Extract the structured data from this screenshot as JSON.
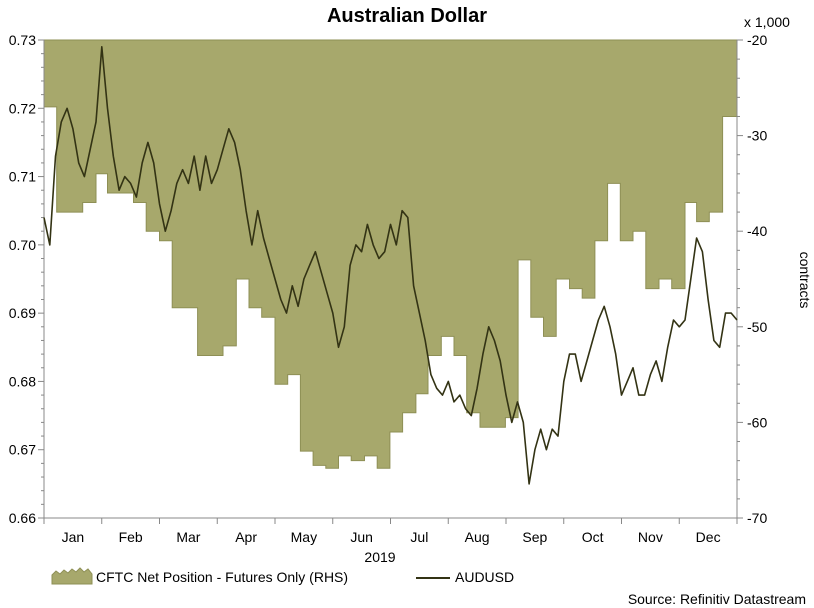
{
  "chart_data": {
    "type": "area+line",
    "title": "Australian Dollar",
    "year_label": "2019",
    "months": [
      "Jan",
      "Feb",
      "Mar",
      "Apr",
      "May",
      "Jun",
      "Jul",
      "Aug",
      "Sep",
      "Oct",
      "Nov",
      "Dec"
    ],
    "x_unit": "month index (0 = start of Jan 2019, 12 = start of Jan 2020)",
    "left_axis": {
      "label": "",
      "ylim": [
        0.66,
        0.73
      ],
      "ticks": [
        "0.66",
        "0.67",
        "0.68",
        "0.69",
        "0.70",
        "0.71",
        "0.72",
        "0.73"
      ]
    },
    "right_axis": {
      "label": "contracts",
      "multiplier_label": "x 1,000",
      "ylim": [
        -70,
        -20
      ],
      "ticks": [
        "-20",
        "-30",
        "-40",
        "-50",
        "-60",
        "-70"
      ]
    },
    "legend": {
      "position": "bottom-left",
      "area_label": "CFTC Net Position - Futures Only (RHS)",
      "line_label": "AUDUSD"
    },
    "source": "Source: Refinitiv Datastream",
    "colors": {
      "area_fill": "#a7a86c",
      "area_edge": "#8e8f55",
      "line": "#333314",
      "axis": "#888888"
    },
    "series": [
      {
        "name": "CFTC Net Position - Futures Only (RHS)",
        "axis": "right",
        "style": "step-area",
        "x": [
          0.0,
          0.22,
          0.45,
          0.67,
          0.9,
          1.1,
          1.33,
          1.55,
          1.77,
          2.0,
          2.22,
          2.44,
          2.66,
          2.88,
          3.1,
          3.33,
          3.55,
          3.77,
          4.0,
          4.22,
          4.44,
          4.66,
          4.88,
          5.1,
          5.32,
          5.55,
          5.77,
          5.99,
          6.21,
          6.44,
          6.65,
          6.88,
          7.1,
          7.32,
          7.55,
          7.77,
          7.99,
          8.21,
          8.43,
          8.65,
          8.87,
          9.1,
          9.32,
          9.54,
          9.76,
          9.98,
          10.2,
          10.42,
          10.65,
          10.87,
          11.1,
          11.3,
          11.52,
          11.75,
          12.0
        ],
        "values": [
          -27,
          -38,
          -38,
          -37,
          -34,
          -36,
          -36,
          -37,
          -40,
          -41,
          -48,
          -48,
          -53,
          -53,
          -52,
          -45,
          -48,
          -49,
          -56,
          -55,
          -63,
          -64.5,
          -64.8,
          -63.5,
          -64,
          -63.5,
          -64.8,
          -61,
          -59,
          -57,
          -53,
          -51,
          -53,
          -59,
          -60.5,
          -60.5,
          -59.5,
          -43,
          -49,
          -51,
          -45,
          -46,
          -47,
          -41,
          -35,
          -41,
          -40,
          -46,
          -45,
          -46,
          -37,
          -39,
          -38,
          -28,
          -20
        ]
      },
      {
        "name": "AUDUSD",
        "axis": "left",
        "style": "line",
        "x": [
          0.0,
          0.1,
          0.2,
          0.3,
          0.4,
          0.5,
          0.6,
          0.7,
          0.8,
          0.9,
          1.0,
          1.1,
          1.2,
          1.3,
          1.4,
          1.5,
          1.6,
          1.7,
          1.8,
          1.9,
          2.0,
          2.1,
          2.2,
          2.3,
          2.4,
          2.5,
          2.6,
          2.7,
          2.8,
          2.9,
          3.0,
          3.1,
          3.2,
          3.3,
          3.4,
          3.5,
          3.6,
          3.7,
          3.8,
          3.9,
          4.0,
          4.1,
          4.2,
          4.3,
          4.4,
          4.5,
          4.6,
          4.7,
          4.8,
          4.9,
          5.0,
          5.1,
          5.2,
          5.3,
          5.4,
          5.5,
          5.6,
          5.7,
          5.8,
          5.9,
          6.0,
          6.1,
          6.2,
          6.3,
          6.4,
          6.5,
          6.6,
          6.7,
          6.8,
          6.9,
          7.0,
          7.1,
          7.2,
          7.3,
          7.4,
          7.5,
          7.6,
          7.7,
          7.8,
          7.9,
          8.0,
          8.1,
          8.2,
          8.3,
          8.4,
          8.5,
          8.6,
          8.7,
          8.8,
          8.9,
          9.0,
          9.1,
          9.2,
          9.3,
          9.4,
          9.5,
          9.6,
          9.7,
          9.8,
          9.9,
          10.0,
          10.1,
          10.2,
          10.3,
          10.4,
          10.5,
          10.6,
          10.7,
          10.8,
          10.9,
          11.0,
          11.1,
          11.2,
          11.3,
          11.4,
          11.5,
          11.6,
          11.7,
          11.8,
          11.9,
          12.0
        ],
        "values": [
          0.704,
          0.7,
          0.713,
          0.718,
          0.72,
          0.717,
          0.712,
          0.71,
          0.714,
          0.718,
          0.729,
          0.72,
          0.713,
          0.708,
          0.71,
          0.709,
          0.707,
          0.712,
          0.715,
          0.712,
          0.706,
          0.702,
          0.705,
          0.709,
          0.711,
          0.709,
          0.713,
          0.708,
          0.713,
          0.709,
          0.711,
          0.714,
          0.717,
          0.715,
          0.711,
          0.705,
          0.7,
          0.705,
          0.701,
          0.698,
          0.695,
          0.692,
          0.69,
          0.694,
          0.691,
          0.695,
          0.697,
          0.699,
          0.696,
          0.693,
          0.69,
          0.685,
          0.688,
          0.697,
          0.7,
          0.699,
          0.703,
          0.7,
          0.698,
          0.699,
          0.703,
          0.7,
          0.705,
          0.704,
          0.694,
          0.69,
          0.686,
          0.681,
          0.679,
          0.678,
          0.68,
          0.677,
          0.678,
          0.676,
          0.675,
          0.679,
          0.684,
          0.688,
          0.686,
          0.683,
          0.678,
          0.674,
          0.677,
          0.674,
          0.665,
          0.67,
          0.673,
          0.67,
          0.673,
          0.672,
          0.68,
          0.684,
          0.684,
          0.68,
          0.683,
          0.686,
          0.689,
          0.691,
          0.688,
          0.684,
          0.678,
          0.68,
          0.682,
          0.678,
          0.678,
          0.681,
          0.683,
          0.68,
          0.685,
          0.689,
          0.688,
          0.689,
          0.695,
          0.701,
          0.699,
          0.692,
          0.686,
          0.685,
          0.69,
          0.69,
          0.689
        ]
      }
    ]
  }
}
